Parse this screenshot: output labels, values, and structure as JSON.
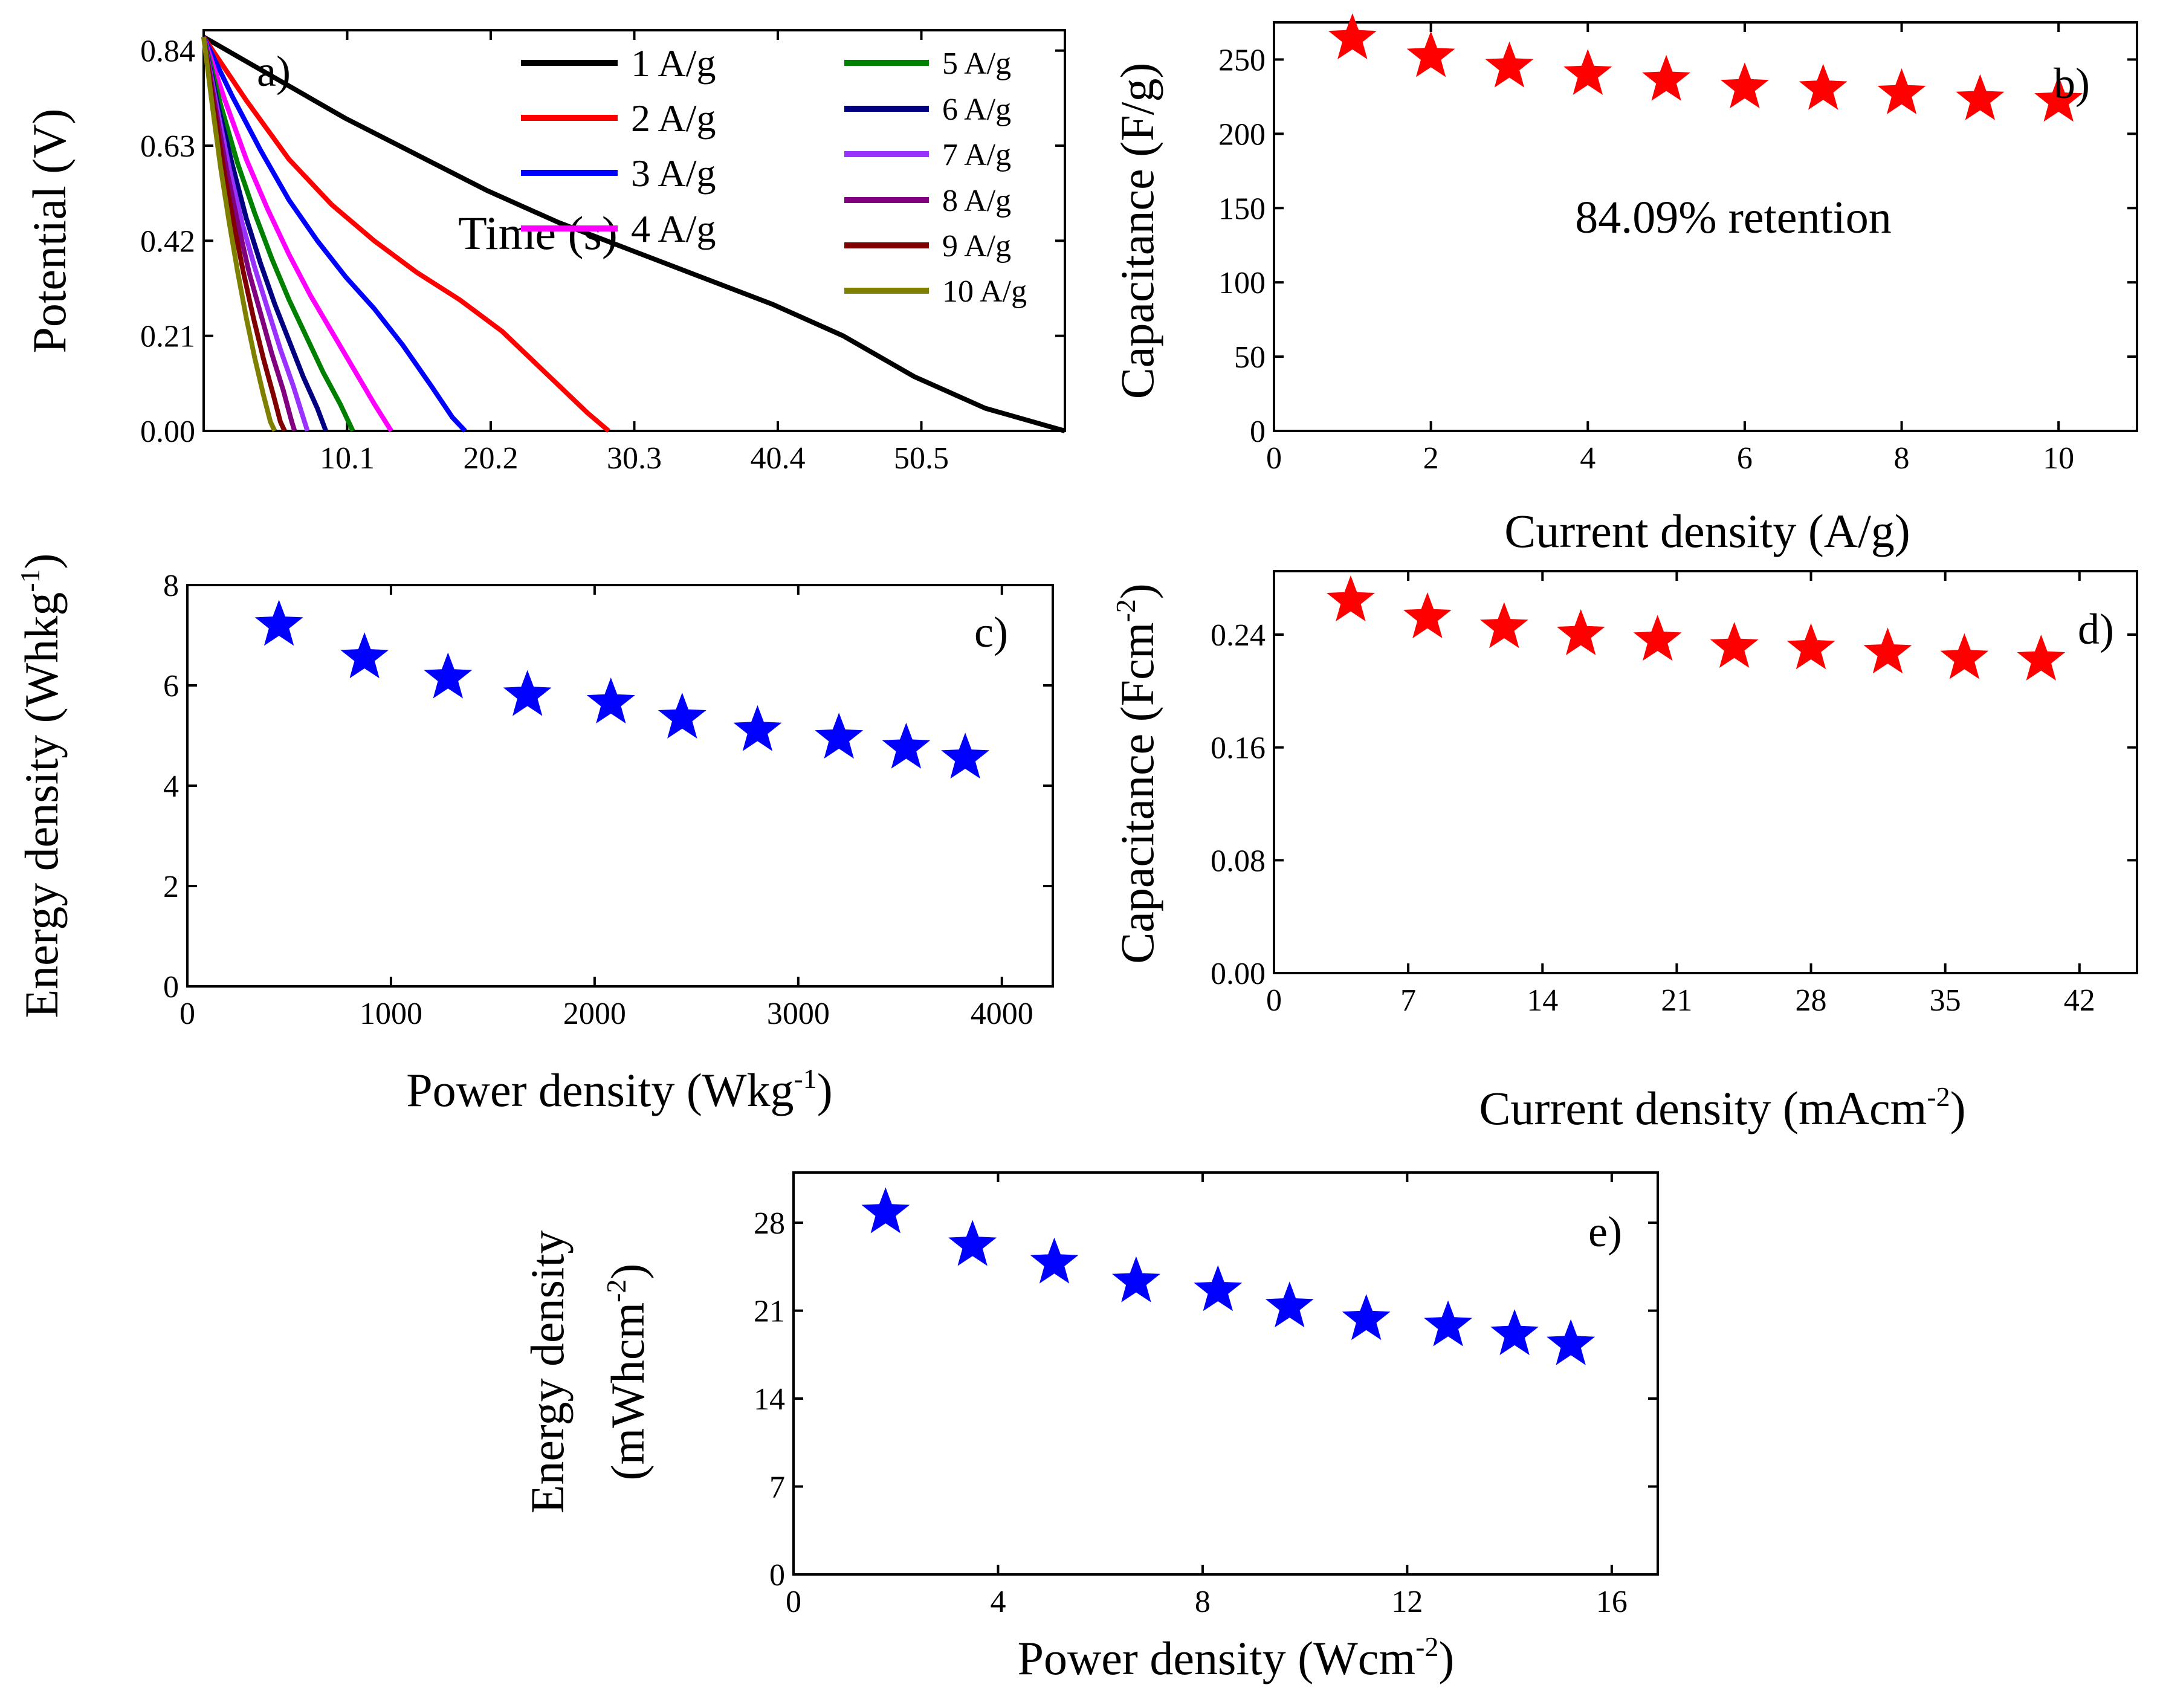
{
  "chart_data": [
    {
      "panel": "a)",
      "type": "line",
      "xlabel": "Time (s)",
      "ylabel": "Potential (V)",
      "xlim": [
        0,
        60.6
      ],
      "ylim": [
        0,
        0.885
      ],
      "xticks": [
        10.1,
        20.2,
        30.3,
        40.4,
        50.5
      ],
      "xtick_labels": [
        "10.1",
        "20.2",
        "30.3",
        "40.4",
        "50.5"
      ],
      "yticks": [
        0,
        0.21,
        0.42,
        0.63,
        0.84
      ],
      "ytick_labels": [
        "0.00",
        "0.21",
        "0.42",
        "0.63",
        "0.84"
      ],
      "series": [
        {
          "name": "1 A/g",
          "color": "#000000",
          "points": [
            [
              0,
              0.87
            ],
            [
              5,
              0.78
            ],
            [
              10,
              0.69
            ],
            [
              15,
              0.61
            ],
            [
              20,
              0.53
            ],
            [
              25,
              0.46
            ],
            [
              30,
              0.4
            ],
            [
              35,
              0.34
            ],
            [
              40,
              0.28
            ],
            [
              45,
              0.21
            ],
            [
              50,
              0.12
            ],
            [
              55,
              0.05
            ],
            [
              60.6,
              0.0
            ]
          ]
        },
        {
          "name": "2 A/g",
          "color": "#ff0000",
          "points": [
            [
              0,
              0.87
            ],
            [
              3,
              0.73
            ],
            [
              6,
              0.6
            ],
            [
              9,
              0.5
            ],
            [
              12,
              0.42
            ],
            [
              15,
              0.35
            ],
            [
              18,
              0.29
            ],
            [
              21,
              0.22
            ],
            [
              24,
              0.13
            ],
            [
              27,
              0.04
            ],
            [
              28.5,
              0.0
            ]
          ]
        },
        {
          "name": "3 A/g",
          "color": "#0000ff",
          "points": [
            [
              0,
              0.87
            ],
            [
              2,
              0.74
            ],
            [
              4,
              0.62
            ],
            [
              6,
              0.51
            ],
            [
              8,
              0.42
            ],
            [
              10,
              0.34
            ],
            [
              12,
              0.27
            ],
            [
              14,
              0.19
            ],
            [
              16,
              0.1
            ],
            [
              17.5,
              0.03
            ],
            [
              18.4,
              0.0
            ]
          ]
        },
        {
          "name": "4 A/g",
          "color": "#ff00ff",
          "points": [
            [
              0,
              0.87
            ],
            [
              1.5,
              0.73
            ],
            [
              3,
              0.6
            ],
            [
              4.5,
              0.49
            ],
            [
              6,
              0.39
            ],
            [
              7.5,
              0.3
            ],
            [
              9,
              0.22
            ],
            [
              10.5,
              0.14
            ],
            [
              12,
              0.06
            ],
            [
              13.2,
              0.0
            ]
          ]
        },
        {
          "name": "5 A/g",
          "color": "#008000",
          "points": [
            [
              0,
              0.87
            ],
            [
              1.2,
              0.72
            ],
            [
              2.4,
              0.59
            ],
            [
              3.6,
              0.48
            ],
            [
              4.8,
              0.38
            ],
            [
              6,
              0.29
            ],
            [
              7.2,
              0.21
            ],
            [
              8.4,
              0.13
            ],
            [
              9.6,
              0.06
            ],
            [
              10.5,
              0.0
            ]
          ]
        },
        {
          "name": "6 A/g",
          "color": "#000080",
          "points": [
            [
              0,
              0.87
            ],
            [
              1,
              0.72
            ],
            [
              2,
              0.59
            ],
            [
              3,
              0.47
            ],
            [
              4,
              0.37
            ],
            [
              5,
              0.28
            ],
            [
              6,
              0.2
            ],
            [
              7,
              0.12
            ],
            [
              8,
              0.05
            ],
            [
              8.6,
              0.0
            ]
          ]
        },
        {
          "name": "7 A/g",
          "color": "#9932ff",
          "points": [
            [
              0,
              0.87
            ],
            [
              0.9,
              0.72
            ],
            [
              1.8,
              0.58
            ],
            [
              2.7,
              0.46
            ],
            [
              3.6,
              0.36
            ],
            [
              4.5,
              0.27
            ],
            [
              5.4,
              0.18
            ],
            [
              6.3,
              0.1
            ],
            [
              7.0,
              0.03
            ],
            [
              7.3,
              0.0
            ]
          ]
        },
        {
          "name": "8 A/g",
          "color": "#800080",
          "points": [
            [
              0,
              0.87
            ],
            [
              0.8,
              0.72
            ],
            [
              1.6,
              0.58
            ],
            [
              2.4,
              0.46
            ],
            [
              3.2,
              0.35
            ],
            [
              4,
              0.26
            ],
            [
              4.8,
              0.17
            ],
            [
              5.6,
              0.09
            ],
            [
              6.2,
              0.02
            ],
            [
              6.4,
              0.0
            ]
          ]
        },
        {
          "name": "9 A/g",
          "color": "#800000",
          "points": [
            [
              0,
              0.87
            ],
            [
              0.7,
              0.72
            ],
            [
              1.4,
              0.58
            ],
            [
              2.1,
              0.46
            ],
            [
              2.8,
              0.35
            ],
            [
              3.5,
              0.25
            ],
            [
              4.2,
              0.16
            ],
            [
              4.9,
              0.08
            ],
            [
              5.4,
              0.02
            ],
            [
              5.7,
              0.0
            ]
          ]
        },
        {
          "name": "10 A/g",
          "color": "#808000",
          "points": [
            [
              0,
              0.87
            ],
            [
              0.6,
              0.72
            ],
            [
              1.2,
              0.58
            ],
            [
              1.8,
              0.46
            ],
            [
              2.4,
              0.35
            ],
            [
              3,
              0.25
            ],
            [
              3.6,
              0.16
            ],
            [
              4.2,
              0.08
            ],
            [
              4.7,
              0.02
            ],
            [
              5.0,
              0.0
            ]
          ]
        }
      ]
    },
    {
      "panel": "b)",
      "type": "scatter",
      "marker": "star",
      "color": "#ff0000",
      "xlabel": "Current density (A/g)",
      "ylabel": "Capacitance (F/g)",
      "xlim": [
        0,
        11
      ],
      "ylim": [
        0,
        275
      ],
      "xticks": [
        0,
        2,
        4,
        6,
        8,
        10
      ],
      "xtick_labels": [
        "0",
        "2",
        "4",
        "6",
        "8",
        "10"
      ],
      "yticks": [
        0,
        50,
        100,
        150,
        200,
        250
      ],
      "ytick_labels": [
        "0",
        "50",
        "100",
        "150",
        "200",
        "250"
      ],
      "annotation": "84.09% retention",
      "x": [
        1,
        2,
        3,
        4,
        5,
        6,
        7,
        8,
        9,
        10
      ],
      "y": [
        264,
        252,
        245,
        240,
        236,
        231,
        230,
        227,
        223,
        222
      ]
    },
    {
      "panel": "c)",
      "type": "scatter",
      "marker": "star",
      "color": "#0000ff",
      "xlabel": "Power density (Wkg",
      "xlabel_sup": "-1",
      "xlabel_end": ")",
      "ylabel": "Energy density (Whkg",
      "ylabel_sup": "-1",
      "ylabel_end": ")",
      "xlim": [
        0,
        4250
      ],
      "ylim": [
        0,
        8
      ],
      "xticks": [
        0,
        1000,
        2000,
        3000,
        4000
      ],
      "xtick_labels": [
        "0",
        "1000",
        "2000",
        "3000",
        "4000"
      ],
      "yticks": [
        0,
        2,
        4,
        6,
        8
      ],
      "ytick_labels": [
        "0",
        "2",
        "4",
        "6",
        "8"
      ],
      "x": [
        450,
        870,
        1280,
        1670,
        2080,
        2430,
        2800,
        3200,
        3530,
        3820
      ],
      "y": [
        7.2,
        6.55,
        6.15,
        5.8,
        5.65,
        5.35,
        5.1,
        4.95,
        4.75,
        4.55
      ]
    },
    {
      "panel": "d)",
      "type": "scatter",
      "marker": "star",
      "color": "#ff0000",
      "xlabel": "Current density (mAcm",
      "xlabel_sup": "-2",
      "xlabel_end": ")",
      "ylabel": "Capacitance (Fcm",
      "ylabel_sup": "-2",
      "ylabel_end": ")",
      "xlim": [
        0,
        45
      ],
      "ylim": [
        0,
        0.285
      ],
      "xticks": [
        0,
        7,
        14,
        21,
        28,
        35,
        42
      ],
      "xtick_labels": [
        "0",
        "7",
        "14",
        "21",
        "28",
        "35",
        "42"
      ],
      "yticks": [
        0,
        0.08,
        0.16,
        0.24
      ],
      "ytick_labels": [
        "0.00",
        "0.08",
        "0.16",
        "0.24"
      ],
      "x": [
        4,
        8,
        12,
        16,
        20,
        24,
        28,
        32,
        36,
        40
      ],
      "y": [
        0.264,
        0.252,
        0.245,
        0.24,
        0.236,
        0.231,
        0.23,
        0.227,
        0.223,
        0.222
      ]
    },
    {
      "panel": "e)",
      "type": "scatter",
      "marker": "star",
      "color": "#0000ff",
      "xlabel": "Power density (Wcm",
      "xlabel_sup": "-2",
      "xlabel_end": ")",
      "ylabel": "Energy density",
      "ylabel2": "(mWhcm",
      "ylabel2_sup": "-2",
      "ylabel2_end": ")",
      "xlim": [
        0,
        16.9
      ],
      "ylim": [
        0,
        32
      ],
      "xticks": [
        0,
        4,
        8,
        12,
        16
      ],
      "xtick_labels": [
        "0",
        "4",
        "8",
        "12",
        "16"
      ],
      "yticks": [
        0,
        7,
        14,
        21,
        28
      ],
      "ytick_labels": [
        "0",
        "7",
        "14",
        "21",
        "28"
      ],
      "x": [
        1.8,
        3.5,
        5.1,
        6.7,
        8.3,
        9.7,
        11.2,
        12.8,
        14.1,
        15.2
      ],
      "y": [
        28.8,
        26.2,
        24.8,
        23.3,
        22.6,
        21.3,
        20.3,
        19.8,
        19.1,
        18.3
      ]
    }
  ]
}
